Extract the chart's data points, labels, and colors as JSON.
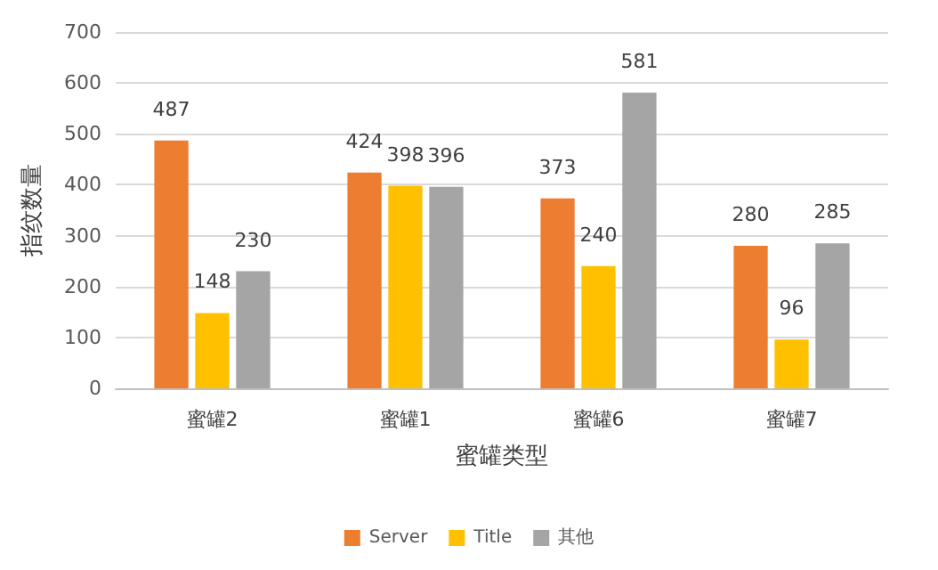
{
  "chart_data": {
    "type": "bar",
    "xlabel": "蜜罐类型",
    "ylabel": "指纹数量",
    "categories": [
      "蜜罐2",
      "蜜罐1",
      "蜜罐6",
      "蜜罐7"
    ],
    "series": [
      {
        "name": "Server",
        "color": "#ed7d31",
        "values": [
          487,
          424,
          373,
          280
        ]
      },
      {
        "name": "Title",
        "color": "#ffc000",
        "values": [
          148,
          398,
          240,
          96
        ]
      },
      {
        "name": "其他",
        "color": "#a5a5a5",
        "values": [
          230,
          396,
          581,
          285
        ]
      }
    ],
    "ylim": [
      0,
      700
    ],
    "yticks": [
      0,
      100,
      200,
      300,
      400,
      500,
      600,
      700
    ],
    "grid": "y",
    "legend": "bottom",
    "data_labels": true
  }
}
